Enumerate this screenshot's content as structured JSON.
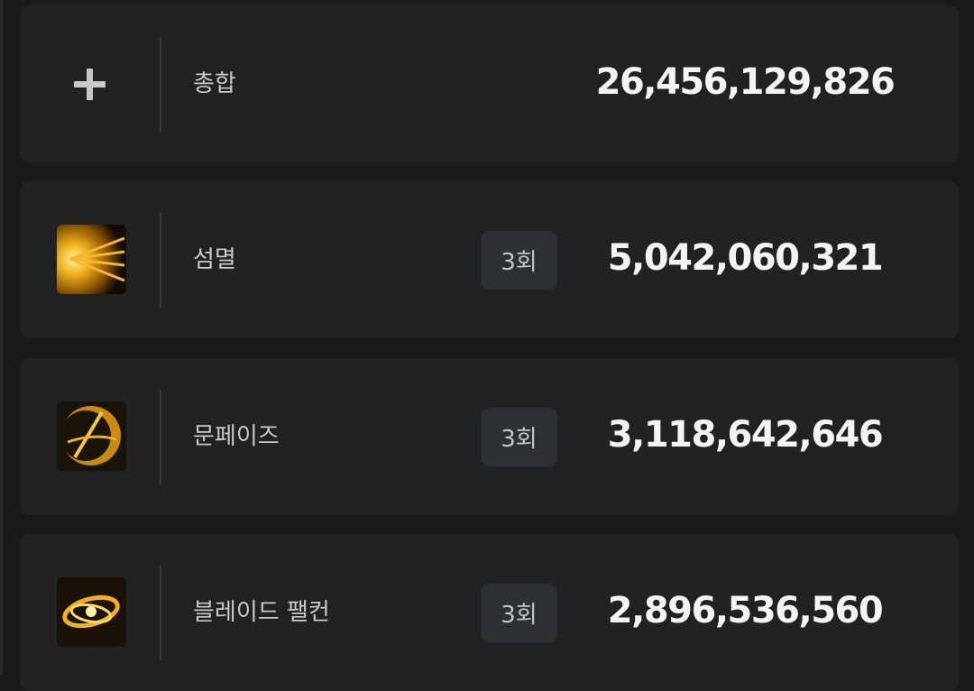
{
  "total": {
    "icon": "plus-icon",
    "label": "총합",
    "value": "26,456,129,826"
  },
  "skills": [
    {
      "icon": "burst-skill-icon",
      "name": "섬멸",
      "count": "3회",
      "value": "5,042,060,321"
    },
    {
      "icon": "moon-phase-skill-icon",
      "name": "문페이즈",
      "count": "3회",
      "value": "3,118,642,646"
    },
    {
      "icon": "blade-falcon-skill-icon",
      "name": "블레이드 팰컨",
      "count": "3회",
      "value": "2,896,536,560"
    }
  ],
  "colors": {
    "background": "#1a1a1a",
    "card": "#222222",
    "badge": "#2f3033",
    "icon_gold": "#f0b020"
  }
}
